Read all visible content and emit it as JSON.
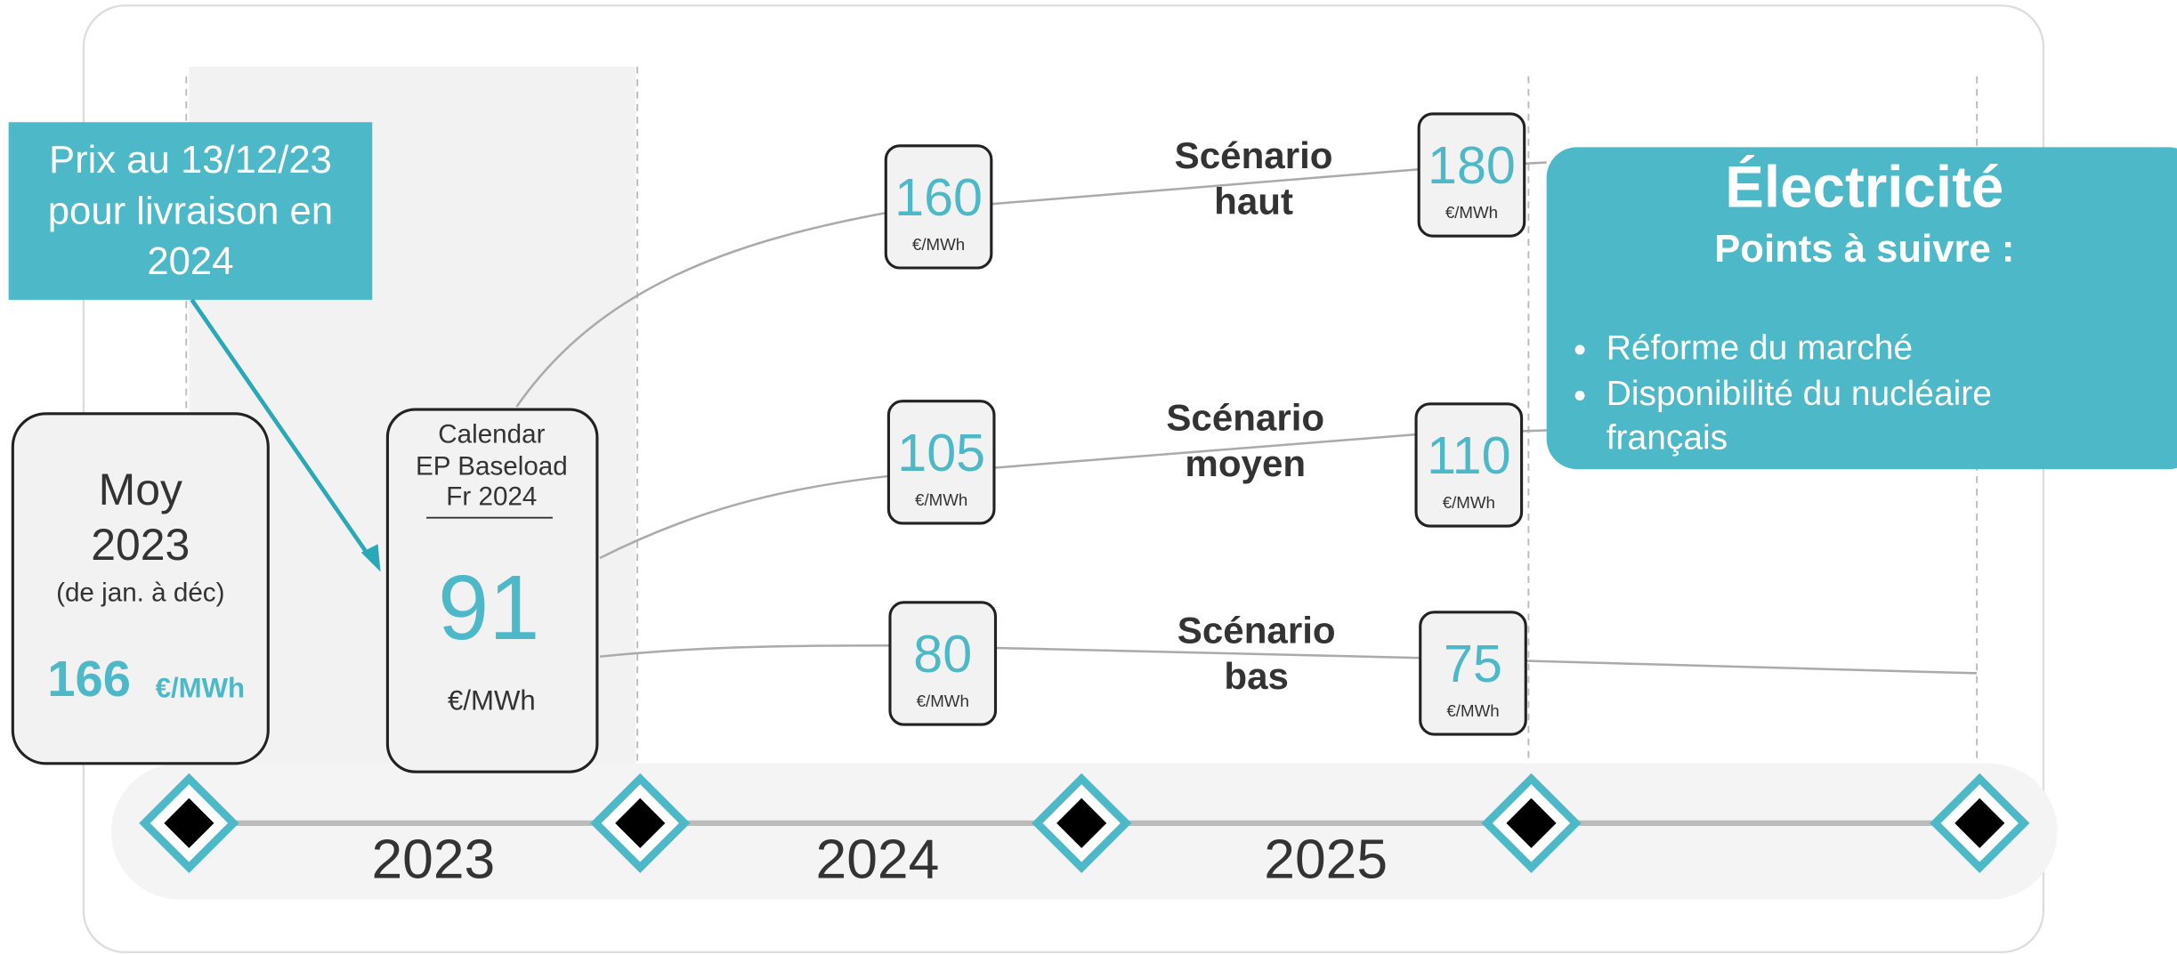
{
  "callout": {
    "lines": [
      "Prix au 13/12/23",
      "pour livraison en",
      "2024"
    ]
  },
  "average": {
    "lines": [
      "Moy",
      "2023"
    ],
    "note": "(de jan. à déc)",
    "value": 166,
    "unit": "€/MWh"
  },
  "calendar": {
    "lines": [
      "Calendar",
      "EP Baseload",
      "Fr 2024"
    ],
    "value": 91,
    "unit": "€/MWh"
  },
  "scenarios": [
    {
      "label": [
        "Scénario",
        "haut"
      ],
      "points": [
        {
          "value": 160,
          "unit": "€/MWh"
        },
        {
          "value": 180,
          "unit": "€/MWh"
        }
      ]
    },
    {
      "label": [
        "Scénario",
        "moyen"
      ],
      "points": [
        {
          "value": 105,
          "unit": "€/MWh"
        },
        {
          "value": 110,
          "unit": "€/MWh"
        }
      ]
    },
    {
      "label": [
        "Scénario",
        "bas"
      ],
      "points": [
        {
          "value": 80,
          "unit": "€/MWh"
        },
        {
          "value": 75,
          "unit": "€/MWh"
        }
      ]
    }
  ],
  "years": [
    "2023",
    "2024",
    "2025"
  ],
  "panel": {
    "title": "Électricité",
    "subtitle": "Points à suivre :",
    "bullets": [
      [
        "Réforme du marché"
      ],
      [
        "Disponibilité du nucléaire",
        "français"
      ]
    ]
  }
}
